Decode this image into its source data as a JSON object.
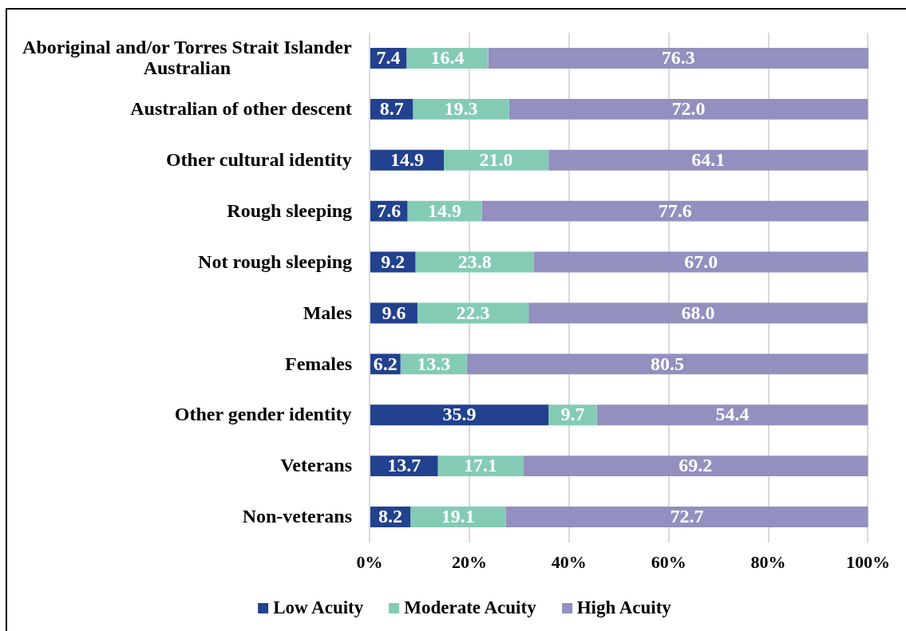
{
  "chart_data": {
    "type": "bar",
    "orientation": "horizontal",
    "stacked": true,
    "categories": [
      "Aboriginal and/or Torres Strait Islander Australian",
      "Australian of other descent",
      "Other cultural identity",
      "Rough sleeping",
      "Not rough sleeping",
      "Males",
      "Females",
      "Other gender identity",
      "Veterans",
      "Non-veterans"
    ],
    "series": [
      {
        "name": "Low Acuity",
        "color": "#22418e",
        "values": [
          7.4,
          8.7,
          14.9,
          7.6,
          9.2,
          9.6,
          6.2,
          35.9,
          13.7,
          8.2
        ],
        "value_labels": [
          "7.4",
          "8.7",
          "14.9",
          "7.6",
          "9.2",
          "9.6",
          "6.2",
          "35.9",
          "13.7",
          "8.2"
        ]
      },
      {
        "name": "Moderate Acuity",
        "color": "#84cbb6",
        "values": [
          16.4,
          19.3,
          21.0,
          14.9,
          23.8,
          22.3,
          13.3,
          9.7,
          17.1,
          19.1
        ],
        "value_labels": [
          "16.4",
          "19.3",
          "21.0",
          "14.9",
          "23.8",
          "22.3",
          "13.3",
          "9.7",
          "17.1",
          "19.1"
        ]
      },
      {
        "name": "High Acuity",
        "color": "#938fbf",
        "values": [
          76.3,
          72.0,
          64.1,
          77.6,
          67.0,
          68.0,
          80.5,
          54.4,
          69.2,
          72.7
        ],
        "value_labels": [
          "76.3",
          "72.0",
          "64.1",
          "77.6",
          "67.0",
          "68.0",
          "80.5",
          "54.4",
          "69.2",
          "72.7"
        ]
      }
    ],
    "xlim": [
      0,
      100.1
    ],
    "xticks": [
      {
        "value": 0,
        "label": "0%"
      },
      {
        "value": 20,
        "label": "20%"
      },
      {
        "value": 40,
        "label": "40%"
      },
      {
        "value": 60,
        "label": "60%"
      },
      {
        "value": 80,
        "label": "80%"
      },
      {
        "value": 100,
        "label": "100%"
      }
    ],
    "grid": "x",
    "legend": "bottom"
  }
}
